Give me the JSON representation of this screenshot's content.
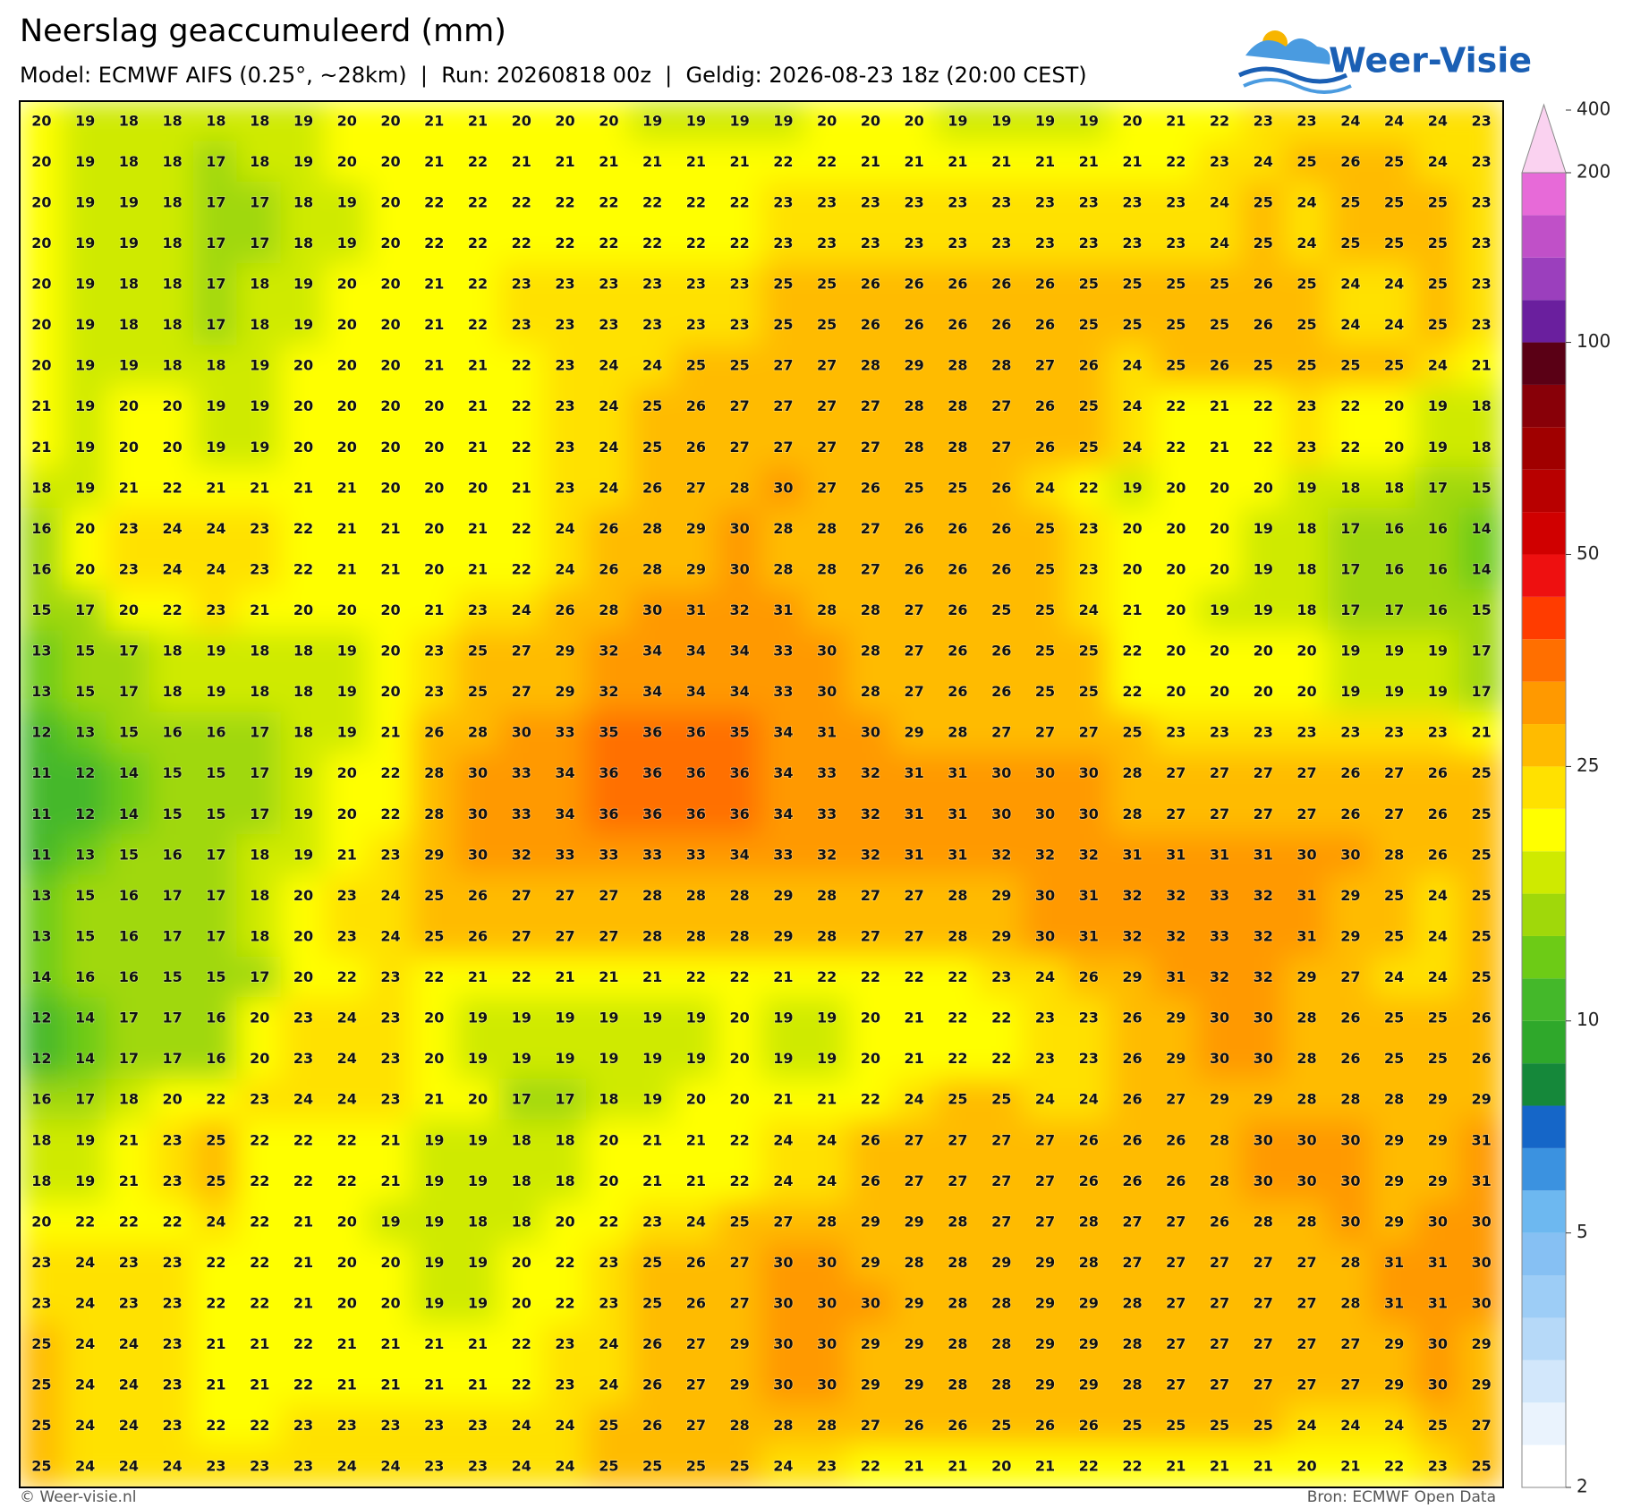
{
  "header": {
    "title": "Neerslag geaccumuleerd (mm)",
    "subtitle": "Model: ECMWF AIFS (0.25°, ~28km)  |  Run: 20260818 00z  |  Geldig: 2026-08-23 18z (20:00 CEST)",
    "logo": "Weer-Visie"
  },
  "map": {
    "values": [
      [
        20,
        19,
        18,
        18,
        18,
        18,
        19,
        20,
        20,
        21,
        21,
        20,
        20,
        20,
        19,
        19,
        19,
        19,
        20,
        20,
        20,
        19,
        19,
        19,
        19,
        20,
        21,
        22,
        23,
        23,
        24,
        24,
        24,
        23
      ],
      [
        20,
        19,
        18,
        18,
        17,
        18,
        19,
        20,
        20,
        21,
        22,
        21,
        21,
        21,
        21,
        21,
        21,
        22,
        22,
        21,
        21,
        21,
        21,
        21,
        21,
        21,
        22,
        23,
        24,
        25,
        26,
        25,
        24,
        23
      ],
      [
        20,
        19,
        19,
        18,
        17,
        17,
        18,
        19,
        20,
        22,
        22,
        22,
        22,
        22,
        22,
        22,
        22,
        23,
        23,
        23,
        23,
        23,
        23,
        23,
        23,
        23,
        23,
        24,
        25,
        24,
        25,
        25,
        25,
        23
      ],
      [
        20,
        19,
        19,
        18,
        17,
        17,
        18,
        19,
        20,
        22,
        22,
        22,
        22,
        22,
        22,
        22,
        22,
        23,
        23,
        23,
        23,
        23,
        23,
        23,
        23,
        23,
        23,
        24,
        25,
        24,
        25,
        25,
        25,
        23
      ],
      [
        20,
        19,
        18,
        18,
        17,
        18,
        19,
        20,
        20,
        21,
        22,
        23,
        23,
        23,
        23,
        23,
        23,
        25,
        25,
        26,
        26,
        26,
        26,
        26,
        25,
        25,
        25,
        25,
        26,
        25,
        24,
        24,
        25,
        23
      ],
      [
        20,
        19,
        18,
        18,
        17,
        18,
        19,
        20,
        20,
        21,
        22,
        23,
        23,
        23,
        23,
        23,
        23,
        25,
        25,
        26,
        26,
        26,
        26,
        26,
        25,
        25,
        25,
        25,
        26,
        25,
        24,
        24,
        25,
        23
      ],
      [
        20,
        19,
        19,
        18,
        18,
        19,
        20,
        20,
        20,
        21,
        21,
        22,
        23,
        24,
        24,
        25,
        25,
        27,
        27,
        28,
        29,
        28,
        28,
        27,
        26,
        24,
        25,
        26,
        25,
        25,
        25,
        25,
        24,
        21
      ],
      [
        21,
        19,
        20,
        20,
        19,
        19,
        20,
        20,
        20,
        20,
        21,
        22,
        23,
        24,
        25,
        26,
        27,
        27,
        27,
        27,
        28,
        28,
        27,
        26,
        25,
        24,
        22,
        21,
        22,
        23,
        22,
        20,
        19,
        18
      ],
      [
        21,
        19,
        20,
        20,
        19,
        19,
        20,
        20,
        20,
        20,
        21,
        22,
        23,
        24,
        25,
        26,
        27,
        27,
        27,
        27,
        28,
        28,
        27,
        26,
        25,
        24,
        22,
        21,
        22,
        23,
        22,
        20,
        19,
        18
      ],
      [
        18,
        19,
        21,
        22,
        21,
        21,
        21,
        21,
        20,
        20,
        20,
        21,
        23,
        24,
        26,
        27,
        28,
        30,
        27,
        26,
        25,
        25,
        26,
        24,
        22,
        19,
        20,
        20,
        20,
        19,
        18,
        18,
        17,
        15
      ],
      [
        16,
        20,
        23,
        24,
        24,
        23,
        22,
        21,
        21,
        20,
        21,
        22,
        24,
        26,
        28,
        29,
        30,
        28,
        28,
        27,
        26,
        26,
        26,
        25,
        23,
        20,
        20,
        20,
        19,
        18,
        17,
        16,
        16,
        14
      ],
      [
        16,
        20,
        23,
        24,
        24,
        23,
        22,
        21,
        21,
        20,
        21,
        22,
        24,
        26,
        28,
        29,
        30,
        28,
        28,
        27,
        26,
        26,
        26,
        25,
        23,
        20,
        20,
        20,
        19,
        18,
        17,
        16,
        16,
        14
      ],
      [
        15,
        17,
        20,
        22,
        23,
        21,
        20,
        20,
        20,
        21,
        23,
        24,
        26,
        28,
        30,
        31,
        32,
        31,
        28,
        28,
        27,
        26,
        25,
        25,
        24,
        21,
        20,
        19,
        19,
        18,
        17,
        17,
        16,
        15
      ],
      [
        13,
        15,
        17,
        18,
        19,
        18,
        18,
        19,
        20,
        23,
        25,
        27,
        29,
        32,
        34,
        34,
        34,
        33,
        30,
        28,
        27,
        26,
        26,
        25,
        25,
        22,
        20,
        20,
        20,
        20,
        19,
        19,
        19,
        17
      ],
      [
        13,
        15,
        17,
        18,
        19,
        18,
        18,
        19,
        20,
        23,
        25,
        27,
        29,
        32,
        34,
        34,
        34,
        33,
        30,
        28,
        27,
        26,
        26,
        25,
        25,
        22,
        20,
        20,
        20,
        20,
        19,
        19,
        19,
        17
      ],
      [
        12,
        13,
        15,
        16,
        16,
        17,
        18,
        19,
        21,
        26,
        28,
        30,
        33,
        35,
        36,
        36,
        35,
        34,
        31,
        30,
        29,
        28,
        27,
        27,
        27,
        25,
        23,
        23,
        23,
        23,
        23,
        23,
        23,
        21
      ],
      [
        11,
        12,
        14,
        15,
        15,
        17,
        19,
        20,
        22,
        28,
        30,
        33,
        34,
        36,
        36,
        36,
        36,
        34,
        33,
        32,
        31,
        31,
        30,
        30,
        30,
        28,
        27,
        27,
        27,
        27,
        26,
        27,
        26,
        25
      ],
      [
        11,
        12,
        14,
        15,
        15,
        17,
        19,
        20,
        22,
        28,
        30,
        33,
        34,
        36,
        36,
        36,
        36,
        34,
        33,
        32,
        31,
        31,
        30,
        30,
        30,
        28,
        27,
        27,
        27,
        27,
        26,
        27,
        26,
        25
      ],
      [
        11,
        13,
        15,
        16,
        17,
        18,
        19,
        21,
        23,
        29,
        30,
        32,
        33,
        33,
        33,
        33,
        34,
        33,
        32,
        32,
        31,
        31,
        32,
        32,
        32,
        31,
        31,
        31,
        31,
        30,
        30,
        28,
        26,
        25
      ],
      [
        13,
        15,
        16,
        17,
        17,
        18,
        20,
        23,
        24,
        25,
        26,
        27,
        27,
        27,
        28,
        28,
        28,
        29,
        28,
        27,
        27,
        28,
        29,
        30,
        31,
        32,
        32,
        33,
        32,
        31,
        29,
        25,
        24,
        25
      ],
      [
        13,
        15,
        16,
        17,
        17,
        18,
        20,
        23,
        24,
        25,
        26,
        27,
        27,
        27,
        28,
        28,
        28,
        29,
        28,
        27,
        27,
        28,
        29,
        30,
        31,
        32,
        32,
        33,
        32,
        31,
        29,
        25,
        24,
        25
      ],
      [
        14,
        16,
        16,
        15,
        15,
        17,
        20,
        22,
        23,
        22,
        21,
        22,
        21,
        21,
        21,
        22,
        22,
        21,
        22,
        22,
        22,
        22,
        23,
        24,
        26,
        29,
        31,
        32,
        32,
        29,
        27,
        24,
        24,
        25
      ],
      [
        12,
        14,
        17,
        17,
        16,
        20,
        23,
        24,
        23,
        20,
        19,
        19,
        19,
        19,
        19,
        19,
        20,
        19,
        19,
        20,
        21,
        22,
        22,
        23,
        23,
        26,
        29,
        30,
        30,
        28,
        26,
        25,
        25,
        26
      ],
      [
        12,
        14,
        17,
        17,
        16,
        20,
        23,
        24,
        23,
        20,
        19,
        19,
        19,
        19,
        19,
        19,
        20,
        19,
        19,
        20,
        21,
        22,
        22,
        23,
        23,
        26,
        29,
        30,
        30,
        28,
        26,
        25,
        25,
        26
      ],
      [
        16,
        17,
        18,
        20,
        22,
        23,
        24,
        24,
        23,
        21,
        20,
        17,
        17,
        18,
        19,
        20,
        20,
        21,
        21,
        22,
        24,
        25,
        25,
        24,
        24,
        26,
        27,
        29,
        29,
        28,
        28,
        28,
        29,
        29
      ],
      [
        18,
        19,
        21,
        23,
        25,
        22,
        22,
        22,
        21,
        19,
        19,
        18,
        18,
        20,
        21,
        21,
        22,
        24,
        24,
        26,
        27,
        27,
        27,
        27,
        26,
        26,
        26,
        28,
        30,
        30,
        30,
        29,
        29,
        31
      ],
      [
        18,
        19,
        21,
        23,
        25,
        22,
        22,
        22,
        21,
        19,
        19,
        18,
        18,
        20,
        21,
        21,
        22,
        24,
        24,
        26,
        27,
        27,
        27,
        27,
        26,
        26,
        26,
        28,
        30,
        30,
        30,
        29,
        29,
        31
      ],
      [
        20,
        22,
        22,
        22,
        24,
        22,
        21,
        20,
        19,
        19,
        18,
        18,
        20,
        22,
        23,
        24,
        25,
        27,
        28,
        29,
        29,
        28,
        27,
        27,
        28,
        27,
        27,
        26,
        28,
        28,
        30,
        29,
        30,
        30
      ],
      [
        23,
        24,
        23,
        23,
        22,
        22,
        21,
        20,
        20,
        19,
        19,
        20,
        22,
        23,
        25,
        26,
        27,
        30,
        30,
        29,
        28,
        28,
        29,
        29,
        28,
        27,
        27,
        27,
        27,
        27,
        28,
        31,
        31,
        30
      ],
      [
        23,
        24,
        23,
        23,
        22,
        22,
        21,
        20,
        20,
        19,
        19,
        20,
        22,
        23,
        25,
        26,
        27,
        30,
        30,
        30,
        29,
        28,
        28,
        29,
        29,
        28,
        27,
        27,
        27,
        27,
        28,
        31,
        31,
        30
      ],
      [
        25,
        24,
        24,
        23,
        21,
        21,
        22,
        21,
        21,
        21,
        21,
        22,
        23,
        24,
        26,
        27,
        29,
        30,
        30,
        29,
        29,
        28,
        28,
        29,
        29,
        28,
        27,
        27,
        27,
        27,
        27,
        29,
        30,
        29
      ],
      [
        25,
        24,
        24,
        23,
        21,
        21,
        22,
        21,
        21,
        21,
        21,
        22,
        23,
        24,
        26,
        27,
        29,
        30,
        30,
        29,
        29,
        28,
        28,
        29,
        29,
        28,
        27,
        27,
        27,
        27,
        27,
        29,
        30,
        29
      ],
      [
        25,
        24,
        24,
        23,
        22,
        22,
        23,
        23,
        23,
        23,
        23,
        24,
        24,
        25,
        26,
        27,
        28,
        28,
        28,
        27,
        26,
        26,
        25,
        26,
        26,
        25,
        25,
        25,
        25,
        24,
        24,
        24,
        25,
        27
      ],
      [
        25,
        24,
        24,
        24,
        23,
        23,
        23,
        24,
        24,
        23,
        23,
        24,
        24,
        25,
        25,
        25,
        25,
        24,
        23,
        22,
        21,
        21,
        20,
        21,
        22,
        22,
        21,
        21,
        21,
        20,
        21,
        22,
        23,
        25
      ]
    ]
  },
  "colorbar": {
    "levels": [
      2,
      2.5,
      3,
      3.5,
      4,
      4.5,
      5,
      6,
      7,
      8,
      9,
      10,
      12.5,
      15,
      17.5,
      20,
      22.5,
      25,
      30,
      35,
      40,
      45,
      50,
      60,
      70,
      80,
      90,
      100,
      125,
      150,
      175,
      200
    ],
    "colors": [
      "#ffffff",
      "#eaf3fd",
      "#d2e7fb",
      "#b6d9f8",
      "#9dcdf6",
      "#86c0f3",
      "#6db8f0",
      "#3b92e0",
      "#1566c8",
      "#15883a",
      "#2fa82b",
      "#44b82a",
      "#6dcb16",
      "#a0d80a",
      "#cfea00",
      "#ffff00",
      "#ffe100",
      "#ffbb00",
      "#ff9900",
      "#ff6f00",
      "#ff3c00",
      "#ee1010",
      "#d00000",
      "#b80000",
      "#a00000",
      "#880008",
      "#5a0015",
      "#6a1f9e",
      "#9b3fbd",
      "#c050c8",
      "#e76ad8"
    ],
    "extend_color": "#fad2f0",
    "ticks": [
      2,
      5,
      10,
      25,
      50,
      100,
      200,
      400
    ]
  },
  "footer": {
    "left": "© Weer-visie.nl",
    "right": "Bron: ECMWF Open Data"
  }
}
